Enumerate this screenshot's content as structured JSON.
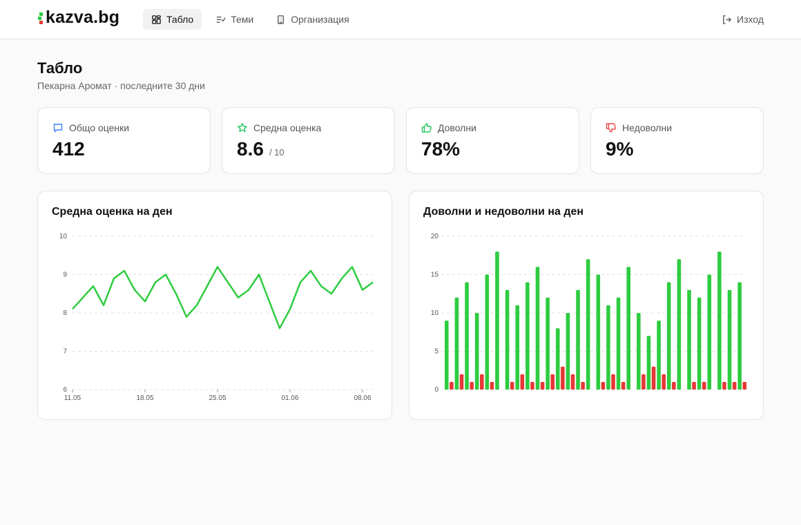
{
  "brand": {
    "name": "kazva.bg"
  },
  "nav": {
    "items": [
      {
        "label": "Табло",
        "icon": "dashboard-grid-icon",
        "active": true
      },
      {
        "label": "Теми",
        "icon": "topics-list-icon",
        "active": false
      },
      {
        "label": "Организация",
        "icon": "building-icon",
        "active": false
      }
    ],
    "logout": {
      "label": "Изход",
      "icon": "logout-icon"
    }
  },
  "page": {
    "title": "Табло",
    "subtitle": "Пекарна Аромат · последните 30 дни"
  },
  "stats": [
    {
      "label": "Общо оценки",
      "value": "412",
      "suffix": "",
      "icon": "message-icon",
      "color": "#3b82f6"
    },
    {
      "label": "Средна оценка",
      "value": "8.6",
      "suffix": "/ 10",
      "icon": "star-icon",
      "color": "#22c55e"
    },
    {
      "label": "Доволни",
      "value": "78%",
      "suffix": "",
      "icon": "thumbs-up-icon",
      "color": "#22c55e"
    },
    {
      "label": "Недоволни",
      "value": "9%",
      "suffix": "",
      "icon": "thumbs-down-icon",
      "color": "#ef4444"
    }
  ],
  "colors": {
    "positive": "#2ecc40",
    "negative": "#e53935",
    "grid": "#e0e0e0"
  },
  "chart_data": [
    {
      "type": "line",
      "title": "Средна оценка на ден",
      "x_ticks": [
        "11.05",
        "18.05",
        "25.05",
        "01.06",
        "08.06"
      ],
      "y_ticks": [
        "10",
        "9",
        "8",
        "7",
        "6"
      ],
      "ylim": [
        6,
        10
      ],
      "grid": true,
      "series": [
        {
          "values": [
            8.1,
            8.4,
            8.7,
            8.2,
            8.9,
            9.1,
            8.6,
            8.3,
            8.8,
            9.0,
            8.5,
            7.9,
            8.2,
            8.7,
            9.2,
            8.8,
            8.4,
            8.6,
            9.0,
            8.3,
            7.6,
            8.1,
            8.8,
            9.1,
            8.7,
            8.5,
            8.9,
            9.2,
            8.6,
            8.8
          ]
        }
      ]
    },
    {
      "type": "bar",
      "title": "Доволни и недоволни на ден",
      "y_ticks": [
        "20",
        "15",
        "10",
        "5",
        "0"
      ],
      "ylim": [
        0,
        20
      ],
      "grid": true,
      "series": [
        {
          "values": [
            9,
            12,
            14,
            10,
            15,
            18,
            13,
            11,
            14,
            16,
            12,
            8,
            10,
            13,
            17,
            15,
            11,
            12,
            16,
            10,
            7,
            9,
            14,
            17,
            13,
            12,
            15,
            18,
            13,
            14
          ]
        },
        {
          "values": [
            1,
            2,
            1,
            2,
            1,
            0,
            1,
            2,
            1,
            1,
            2,
            3,
            2,
            1,
            0,
            1,
            2,
            1,
            0,
            2,
            3,
            2,
            1,
            0,
            1,
            1,
            0,
            1,
            1,
            1
          ]
        }
      ]
    }
  ]
}
